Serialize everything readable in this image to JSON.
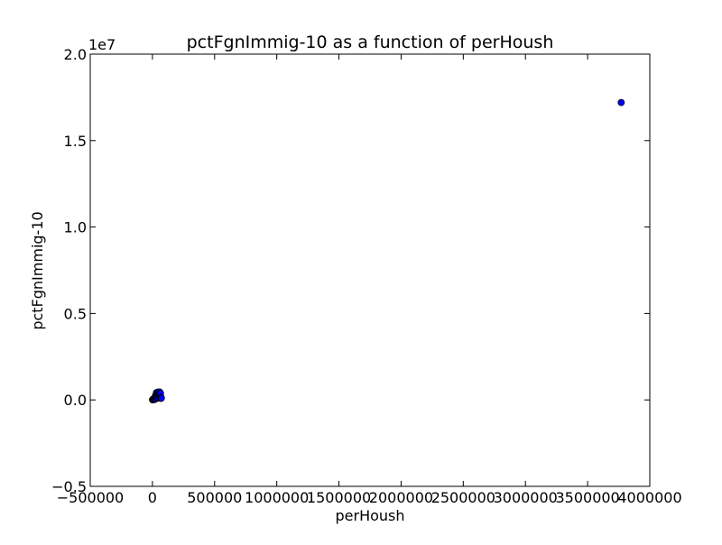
{
  "chart_data": {
    "type": "scatter",
    "title": "pctFgnImmig-10 as a function of perHoush",
    "xlabel": "perHoush",
    "ylabel": "pctFgnImmig-10",
    "xlim": [
      -500000,
      4000000
    ],
    "ylim": [
      -5000000,
      20000000
    ],
    "x_ticks": [
      -500000,
      0,
      500000,
      1000000,
      1500000,
      2000000,
      2500000,
      3000000,
      3500000,
      4000000
    ],
    "x_tick_labels": [
      "−500000",
      "0",
      "500000",
      "1000000",
      "1500000",
      "2000000",
      "2500000",
      "3000000",
      "3500000",
      "4000000"
    ],
    "y_ticks": [
      -5000000,
      0,
      5000000,
      10000000,
      15000000,
      20000000
    ],
    "y_tick_labels": [
      "−0.5",
      "0.0",
      "0.5",
      "1.0",
      "1.5",
      "2.0"
    ],
    "y_offset_label": "1e7",
    "grid": false,
    "legend": "none",
    "marker_color": "#0000ff",
    "marker_edge_color": "#000000",
    "points": [
      {
        "x": 3770000,
        "y": 17200000
      },
      {
        "x": 1000,
        "y": 5000
      },
      {
        "x": 2000,
        "y": 20000
      },
      {
        "x": 3000,
        "y": 8000
      },
      {
        "x": 5000,
        "y": 40000
      },
      {
        "x": 8000,
        "y": 15000
      },
      {
        "x": 10000,
        "y": 60000
      },
      {
        "x": 12000,
        "y": 10000
      },
      {
        "x": 15000,
        "y": 30000
      },
      {
        "x": 18000,
        "y": 80000
      },
      {
        "x": 20000,
        "y": 120000
      },
      {
        "x": 22000,
        "y": 200000
      },
      {
        "x": 25000,
        "y": 50000
      },
      {
        "x": 28000,
        "y": 300000
      },
      {
        "x": 30000,
        "y": 150000
      },
      {
        "x": 32000,
        "y": 420000
      },
      {
        "x": 35000,
        "y": 250000
      },
      {
        "x": 38000,
        "y": 100000
      },
      {
        "x": 40000,
        "y": 350000
      },
      {
        "x": 42000,
        "y": 180000
      },
      {
        "x": 45000,
        "y": 450000
      },
      {
        "x": 48000,
        "y": 280000
      },
      {
        "x": 50000,
        "y": 120000
      },
      {
        "x": 52000,
        "y": 400000
      },
      {
        "x": 55000,
        "y": 330000
      },
      {
        "x": 58000,
        "y": 460000
      },
      {
        "x": 60000,
        "y": 220000
      },
      {
        "x": 62000,
        "y": 150000
      },
      {
        "x": 65000,
        "y": 380000
      },
      {
        "x": 68000,
        "y": 90000
      },
      {
        "x": 70000,
        "y": 140000
      },
      {
        "x": 72000,
        "y": 100000
      }
    ]
  }
}
